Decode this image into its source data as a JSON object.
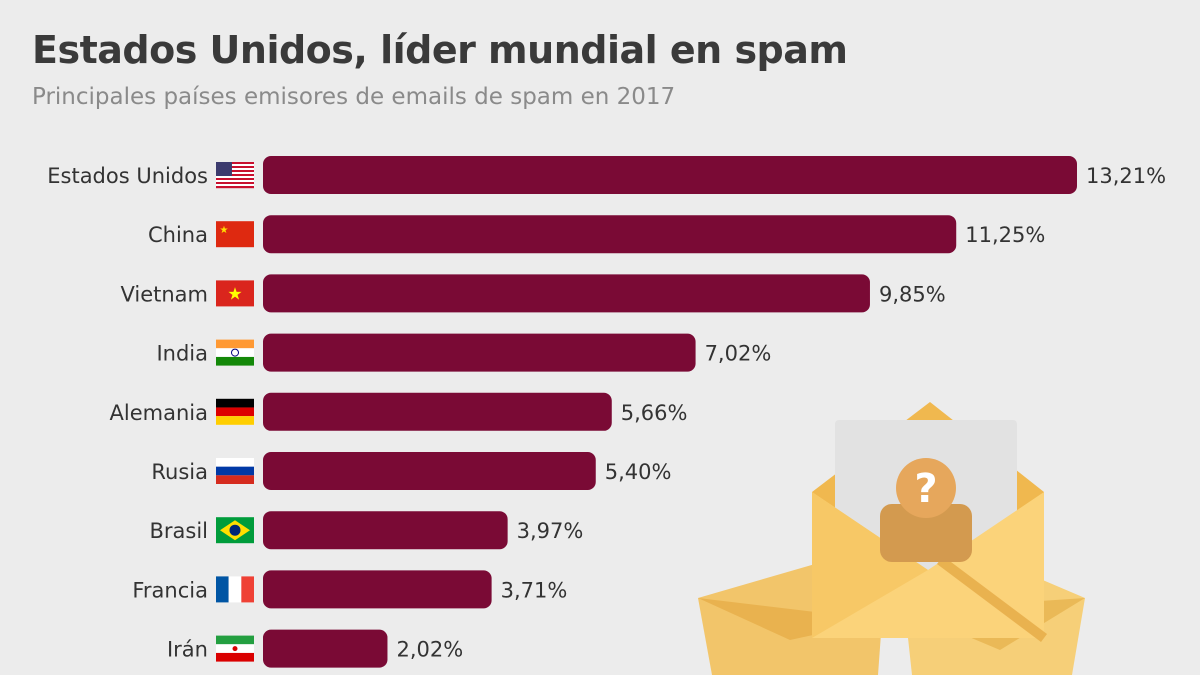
{
  "header": {
    "title": "Estados Unidos, líder mundial en spam",
    "subtitle": "Principales países emisores de emails de spam en 2017"
  },
  "colors": {
    "bar": "#7a0a35",
    "background": "#ececec"
  },
  "chart_data": {
    "type": "bar",
    "orientation": "horizontal",
    "title": "Estados Unidos, líder mundial en spam",
    "subtitle": "Principales países emisores de emails de spam en 2017",
    "unit": "%",
    "categories": [
      "Estados Unidos",
      "China",
      "Vietnam",
      "India",
      "Alemania",
      "Rusia",
      "Brasil",
      "Francia",
      "Irán"
    ],
    "values": [
      13.21,
      11.25,
      9.85,
      7.02,
      5.66,
      5.4,
      3.97,
      3.71,
      2.02
    ],
    "value_labels": [
      "13,21%",
      "11,25%",
      "9,85%",
      "7,02%",
      "5,66%",
      "5,40%",
      "3,97%",
      "3,71%",
      "2,02%"
    ],
    "flags": [
      "us-flag-icon",
      "china-flag-icon",
      "vietnam-flag-icon",
      "india-flag-icon",
      "germany-flag-icon",
      "russia-flag-icon",
      "brazil-flag-icon",
      "france-flag-icon",
      "iran-flag-icon"
    ],
    "xlim": [
      0,
      13.21
    ]
  },
  "illustration": {
    "name": "spam-envelopes-illustration",
    "symbol": "?"
  }
}
